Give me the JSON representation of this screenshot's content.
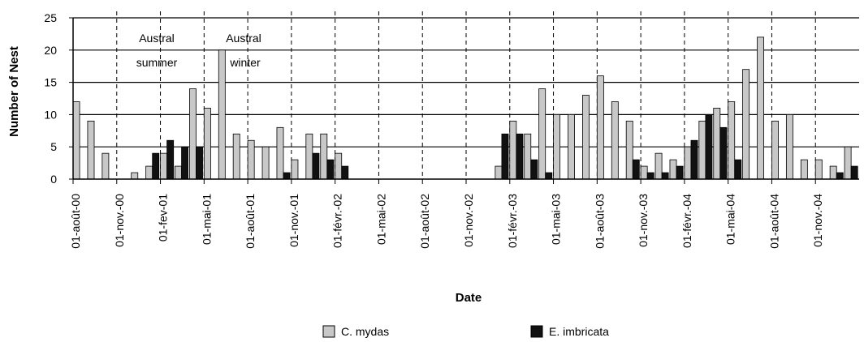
{
  "chart_data": {
    "type": "bar",
    "xlabel": "Date",
    "ylabel": "Number of Nest",
    "ylim": [
      0,
      25
    ],
    "yticks": [
      0,
      5,
      10,
      15,
      20,
      25
    ],
    "grid": "horizontal",
    "legend_position": "bottom",
    "colors": {
      "c_mydas": "#c8c8c8",
      "e_imbricata": "#111111"
    },
    "x_ticks": [
      "01-août-00",
      "01-nov.-00",
      "01-fev-01",
      "01-mai-01",
      "01-août-01",
      "01-nov.-01",
      "01-févr.-02",
      "01-mai-02",
      "01-août-02",
      "01-nov.-02",
      "01-févr.-03",
      "01-mai-03",
      "01-août-03",
      "01-nov.-03",
      "01-févr.-04",
      "01-mai-04",
      "01-août-04",
      "01-nov.-04"
    ],
    "series": [
      {
        "name": "C. mydas",
        "values": [
          12,
          9,
          4,
          0,
          1,
          2,
          4,
          2,
          14,
          11,
          20,
          7,
          6,
          5,
          8,
          3,
          7,
          7,
          4,
          0,
          0,
          0,
          0,
          0,
          0,
          0,
          0,
          0,
          0,
          2,
          9,
          7,
          14,
          10,
          10,
          13,
          16,
          12,
          9,
          2,
          4,
          3,
          5,
          9,
          11,
          12,
          17,
          22,
          9,
          10,
          3,
          3,
          2,
          5
        ]
      },
      {
        "name": "E. imbricata",
        "values": [
          0,
          0,
          0,
          0,
          0,
          4,
          6,
          5,
          5,
          0,
          0,
          0,
          0,
          0,
          1,
          0,
          4,
          3,
          2,
          0,
          0,
          0,
          0,
          0,
          0,
          0,
          0,
          0,
          0,
          7,
          7,
          3,
          1,
          0,
          0,
          0,
          0,
          0,
          3,
          1,
          1,
          2,
          6,
          10,
          8,
          3,
          0,
          0,
          0,
          0,
          0,
          0,
          1,
          2
        ]
      }
    ],
    "annotations": [
      {
        "line1": "Austral",
        "line2": "summer"
      },
      {
        "line1": "Austral",
        "line2": "winter"
      }
    ]
  }
}
